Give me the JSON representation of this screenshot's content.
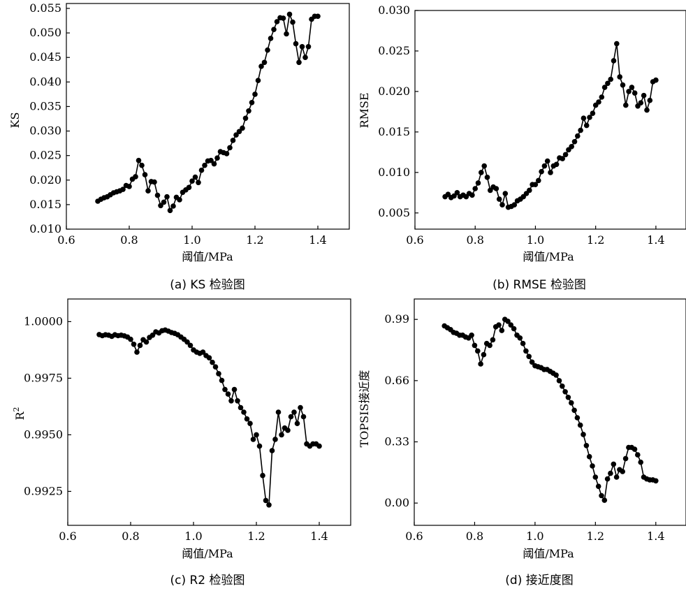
{
  "chart_data": [
    {
      "type": "line",
      "caption": "(a) KS 检验图",
      "xlabel": "阈值/MPa",
      "ylabel": "KS",
      "xlim": [
        0.6,
        1.5
      ],
      "ylim": [
        0.01,
        0.056
      ],
      "xticks": [
        0.6,
        0.8,
        1.0,
        1.2,
        1.4
      ],
      "yticks": [
        0.01,
        0.015,
        0.02,
        0.025,
        0.03,
        0.035,
        0.04,
        0.045,
        0.05,
        0.055
      ],
      "ytick_labels": [
        "0.010",
        "0.015",
        "0.020",
        "0.025",
        "0.030",
        "0.035",
        "0.040",
        "0.045",
        "0.050",
        "0.055"
      ],
      "xtick_labels": [
        "0.6",
        "0.8",
        "1.0",
        "1.2",
        "1.4"
      ],
      "grid": false,
      "marker": "filled-circle",
      "x": [
        0.7,
        0.71,
        0.72,
        0.73,
        0.74,
        0.75,
        0.76,
        0.77,
        0.78,
        0.79,
        0.8,
        0.81,
        0.82,
        0.83,
        0.84,
        0.85,
        0.86,
        0.87,
        0.88,
        0.89,
        0.9,
        0.91,
        0.92,
        0.93,
        0.94,
        0.95,
        0.96,
        0.97,
        0.98,
        0.99,
        1.0,
        1.01,
        1.02,
        1.03,
        1.04,
        1.05,
        1.06,
        1.07,
        1.08,
        1.09,
        1.1,
        1.11,
        1.12,
        1.13,
        1.14,
        1.15,
        1.16,
        1.17,
        1.18,
        1.19,
        1.2,
        1.21,
        1.22,
        1.23,
        1.24,
        1.25,
        1.26,
        1.27,
        1.28,
        1.29,
        1.3,
        1.31,
        1.32,
        1.33,
        1.34,
        1.35,
        1.36,
        1.37,
        1.38,
        1.39,
        1.4
      ],
      "y": [
        0.0157,
        0.0161,
        0.0164,
        0.0166,
        0.017,
        0.0174,
        0.0176,
        0.0178,
        0.0181,
        0.0189,
        0.0187,
        0.0202,
        0.0207,
        0.024,
        0.023,
        0.0211,
        0.0178,
        0.0197,
        0.0196,
        0.0169,
        0.0148,
        0.0155,
        0.0166,
        0.0138,
        0.0147,
        0.0165,
        0.016,
        0.0175,
        0.018,
        0.0185,
        0.0198,
        0.0206,
        0.0195,
        0.022,
        0.023,
        0.0239,
        0.024,
        0.0233,
        0.0245,
        0.0258,
        0.0256,
        0.0254,
        0.0266,
        0.0281,
        0.0292,
        0.0299,
        0.0306,
        0.0326,
        0.0341,
        0.0358,
        0.0375,
        0.0403,
        0.0432,
        0.044,
        0.0465,
        0.0489,
        0.0507,
        0.0523,
        0.0531,
        0.053,
        0.0498,
        0.0538,
        0.0522,
        0.0478,
        0.044,
        0.0472,
        0.045,
        0.0472,
        0.0528,
        0.0534,
        0.0534
      ]
    },
    {
      "type": "line",
      "caption": "(b) RMSE 检验图",
      "xlabel": "阈值/MPa",
      "ylabel": "RMSE",
      "xlim": [
        0.6,
        1.5
      ],
      "ylim": [
        0.003,
        0.03
      ],
      "xticks": [
        0.6,
        0.8,
        1.0,
        1.2,
        1.4
      ],
      "yticks": [
        0.005,
        0.01,
        0.015,
        0.02,
        0.025,
        0.03
      ],
      "ytick_labels": [
        "0.005",
        "0.010",
        "0.015",
        "0.020",
        "0.025",
        "0.030"
      ],
      "xtick_labels": [
        "0.6",
        "0.8",
        "1.0",
        "1.2",
        "1.4"
      ],
      "grid": false,
      "marker": "filled-circle",
      "x": [
        0.7,
        0.71,
        0.72,
        0.73,
        0.74,
        0.75,
        0.76,
        0.77,
        0.78,
        0.79,
        0.8,
        0.81,
        0.82,
        0.83,
        0.84,
        0.85,
        0.86,
        0.87,
        0.88,
        0.89,
        0.9,
        0.91,
        0.92,
        0.93,
        0.94,
        0.95,
        0.96,
        0.97,
        0.98,
        0.99,
        1.0,
        1.01,
        1.02,
        1.03,
        1.04,
        1.05,
        1.06,
        1.07,
        1.08,
        1.09,
        1.1,
        1.11,
        1.12,
        1.13,
        1.14,
        1.15,
        1.16,
        1.17,
        1.18,
        1.19,
        1.2,
        1.21,
        1.22,
        1.23,
        1.24,
        1.25,
        1.26,
        1.27,
        1.28,
        1.29,
        1.3,
        1.31,
        1.32,
        1.33,
        1.34,
        1.35,
        1.36,
        1.37,
        1.38,
        1.39,
        1.4
      ],
      "y": [
        0.007,
        0.0073,
        0.0069,
        0.0071,
        0.0075,
        0.007,
        0.0072,
        0.007,
        0.0074,
        0.0072,
        0.008,
        0.0087,
        0.01,
        0.0108,
        0.0094,
        0.0078,
        0.0082,
        0.008,
        0.0067,
        0.006,
        0.0074,
        0.0057,
        0.0058,
        0.006,
        0.0065,
        0.0067,
        0.007,
        0.0074,
        0.0078,
        0.0085,
        0.0085,
        0.009,
        0.0101,
        0.0108,
        0.0114,
        0.01,
        0.0108,
        0.011,
        0.0118,
        0.0117,
        0.0122,
        0.0128,
        0.0132,
        0.0138,
        0.0145,
        0.0152,
        0.0167,
        0.0158,
        0.0168,
        0.0173,
        0.0183,
        0.0187,
        0.0193,
        0.0205,
        0.021,
        0.0215,
        0.0238,
        0.0259,
        0.0218,
        0.0208,
        0.0183,
        0.02,
        0.0205,
        0.0198,
        0.0182,
        0.0186,
        0.0195,
        0.0177,
        0.0189,
        0.0212,
        0.0214
      ]
    },
    {
      "type": "line",
      "caption": "(c) R2 检验图",
      "xlabel": "阈值/MPa",
      "ylabel": "R",
      "ylabel_sup": "2",
      "xlim": [
        0.6,
        1.5
      ],
      "ylim": [
        0.991,
        1.001
      ],
      "xticks": [
        0.6,
        0.8,
        1.0,
        1.2,
        1.4
      ],
      "yticks": [
        0.9925,
        0.995,
        0.9975,
        1.0
      ],
      "ytick_labels": [
        "0.9925",
        "0.9950",
        "0.9975",
        "1.0000"
      ],
      "xtick_labels": [
        "0.6",
        "0.8",
        "1.0",
        "1.2",
        "1.4"
      ],
      "grid": false,
      "marker": "filled-circle",
      "x": [
        0.7,
        0.71,
        0.72,
        0.73,
        0.74,
        0.75,
        0.76,
        0.77,
        0.78,
        0.79,
        0.8,
        0.81,
        0.82,
        0.83,
        0.84,
        0.85,
        0.86,
        0.87,
        0.88,
        0.89,
        0.9,
        0.91,
        0.92,
        0.93,
        0.94,
        0.95,
        0.96,
        0.97,
        0.98,
        0.99,
        1.0,
        1.01,
        1.02,
        1.03,
        1.04,
        1.05,
        1.06,
        1.07,
        1.08,
        1.09,
        1.1,
        1.11,
        1.12,
        1.13,
        1.14,
        1.15,
        1.16,
        1.17,
        1.18,
        1.19,
        1.2,
        1.21,
        1.22,
        1.23,
        1.24,
        1.25,
        1.26,
        1.27,
        1.28,
        1.29,
        1.3,
        1.31,
        1.32,
        1.33,
        1.34,
        1.35,
        1.36,
        1.37,
        1.38,
        1.39,
        1.4
      ],
      "y": [
        0.99943,
        0.99938,
        0.99942,
        0.9994,
        0.99935,
        0.99942,
        0.99938,
        0.9994,
        0.99937,
        0.99932,
        0.99922,
        0.999,
        0.99865,
        0.99895,
        0.9992,
        0.9991,
        0.9993,
        0.9994,
        0.99955,
        0.9995,
        0.9996,
        0.99963,
        0.99958,
        0.99952,
        0.99948,
        0.99942,
        0.99932,
        0.99922,
        0.9991,
        0.99895,
        0.99875,
        0.99865,
        0.9986,
        0.99865,
        0.9985,
        0.9984,
        0.9982,
        0.998,
        0.9977,
        0.9974,
        0.997,
        0.9968,
        0.9965,
        0.997,
        0.9965,
        0.9962,
        0.996,
        0.9957,
        0.9955,
        0.9948,
        0.995,
        0.9945,
        0.9932,
        0.9921,
        0.9919,
        0.9943,
        0.9948,
        0.996,
        0.995,
        0.9953,
        0.9952,
        0.9958,
        0.996,
        0.9955,
        0.9962,
        0.9958,
        0.9946,
        0.9945,
        0.9946,
        0.9946,
        0.9945
      ]
    },
    {
      "type": "line",
      "caption": "(d) 接近度图",
      "xlabel": "阈值/MPa",
      "ylabel": "TOPSIS接近度",
      "xlim": [
        0.6,
        1.5
      ],
      "ylim": [
        -0.12,
        1.1
      ],
      "xticks": [
        0.6,
        0.8,
        1.0,
        1.2,
        1.4
      ],
      "yticks": [
        0.0,
        0.33,
        0.66,
        0.99
      ],
      "ytick_labels": [
        "0.00",
        "0.33",
        "0.66",
        "0.99"
      ],
      "xtick_labels": [
        "0.6",
        "0.8",
        "1.0",
        "1.2",
        "1.4"
      ],
      "grid": false,
      "marker": "filled-circle",
      "x": [
        0.7,
        0.71,
        0.72,
        0.73,
        0.74,
        0.75,
        0.76,
        0.77,
        0.78,
        0.79,
        0.8,
        0.81,
        0.82,
        0.83,
        0.84,
        0.85,
        0.86,
        0.87,
        0.88,
        0.89,
        0.9,
        0.91,
        0.92,
        0.93,
        0.94,
        0.95,
        0.96,
        0.97,
        0.98,
        0.99,
        1.0,
        1.01,
        1.02,
        1.03,
        1.04,
        1.05,
        1.06,
        1.07,
        1.08,
        1.09,
        1.1,
        1.11,
        1.12,
        1.13,
        1.14,
        1.15,
        1.16,
        1.17,
        1.18,
        1.19,
        1.2,
        1.21,
        1.22,
        1.23,
        1.24,
        1.25,
        1.26,
        1.27,
        1.28,
        1.29,
        1.3,
        1.31,
        1.32,
        1.33,
        1.34,
        1.35,
        1.36,
        1.37,
        1.38,
        1.39,
        1.4
      ],
      "y": [
        0.955,
        0.945,
        0.935,
        0.92,
        0.915,
        0.905,
        0.905,
        0.895,
        0.89,
        0.905,
        0.85,
        0.82,
        0.75,
        0.8,
        0.86,
        0.85,
        0.88,
        0.95,
        0.96,
        0.93,
        0.99,
        0.98,
        0.96,
        0.94,
        0.905,
        0.89,
        0.86,
        0.82,
        0.79,
        0.76,
        0.74,
        0.735,
        0.73,
        0.72,
        0.72,
        0.71,
        0.7,
        0.69,
        0.66,
        0.63,
        0.6,
        0.57,
        0.54,
        0.5,
        0.46,
        0.42,
        0.37,
        0.31,
        0.25,
        0.2,
        0.14,
        0.09,
        0.04,
        0.015,
        0.13,
        0.16,
        0.21,
        0.14,
        0.18,
        0.17,
        0.24,
        0.3,
        0.3,
        0.29,
        0.26,
        0.22,
        0.14,
        0.13,
        0.125,
        0.125,
        0.12
      ]
    }
  ]
}
